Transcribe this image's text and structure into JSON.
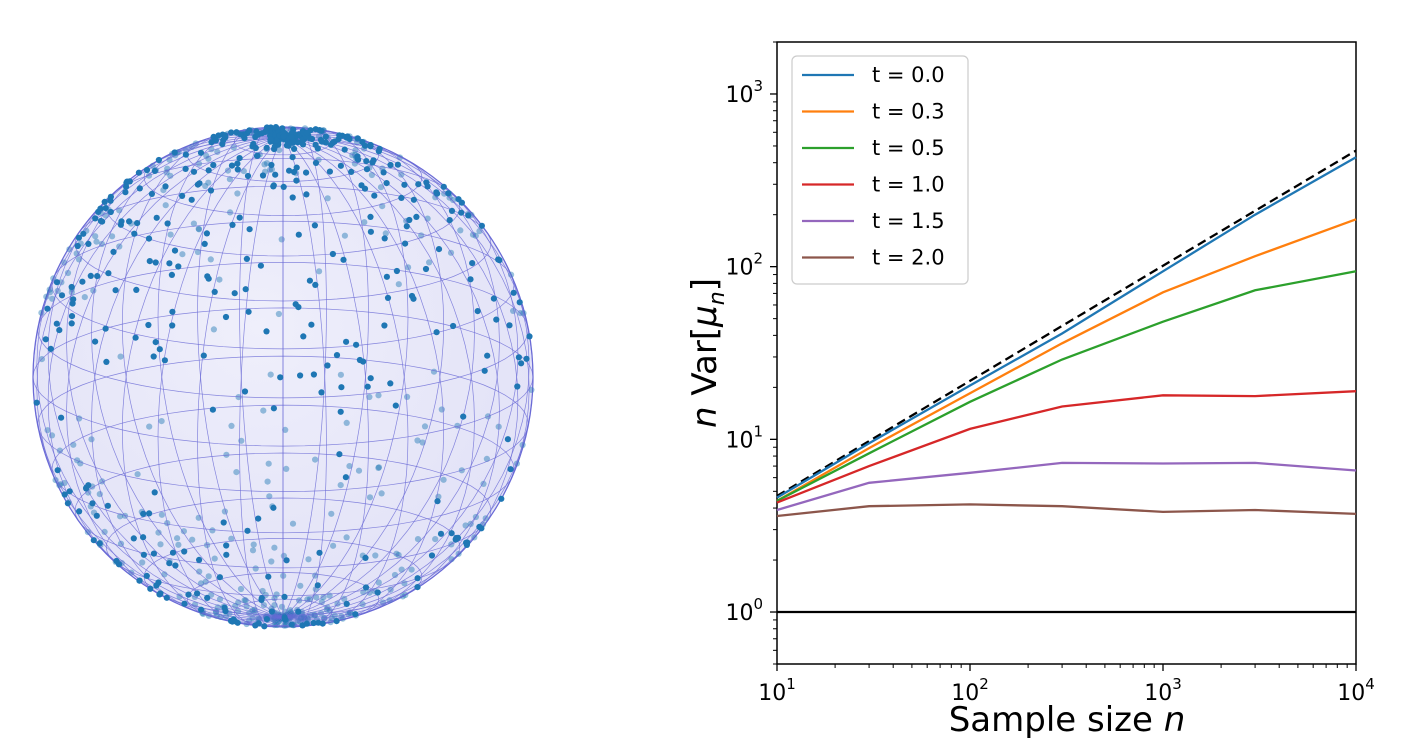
{
  "chart_data": [
    {
      "type": "scatter",
      "title": "",
      "description_id": "sphere-points",
      "points_color": "#1f77b4",
      "sphere_color": "#6a6ad6",
      "sphere_fill": "#e2e2f7"
    },
    {
      "type": "line",
      "title": "",
      "xlabel_prefix": "Sample size ",
      "xlabel_var": "n",
      "ylabel_var": "n",
      "ylabel_text": " Var[",
      "ylabel_mu": "μ",
      "ylabel_sub": "n",
      "ylabel_close": "]",
      "xscale": "log",
      "yscale": "log",
      "xlim": [
        10,
        10000
      ],
      "ylim": [
        0.5,
        2000
      ],
      "x_ticks": [
        {
          "base": "10",
          "exp": "1",
          "value": 10
        },
        {
          "base": "10",
          "exp": "2",
          "value": 100
        },
        {
          "base": "10",
          "exp": "3",
          "value": 1000
        },
        {
          "base": "10",
          "exp": "4",
          "value": 10000
        }
      ],
      "y_ticks": [
        {
          "base": "10",
          "exp": "0",
          "value": 1
        },
        {
          "base": "10",
          "exp": "1",
          "value": 10
        },
        {
          "base": "10",
          "exp": "2",
          "value": 100
        },
        {
          "base": "10",
          "exp": "3",
          "value": 1000
        }
      ],
      "x": [
        10,
        30,
        100,
        300,
        1000,
        3000,
        10000
      ],
      "legend_position": "top-left",
      "series": [
        {
          "name": "t = 0.0",
          "color": "#1f77b4",
          "values": [
            4.6,
            9.5,
            20.5,
            41,
            94,
            200,
            430
          ]
        },
        {
          "name": "t = 0.3",
          "color": "#ff7f0e",
          "values": [
            4.4,
            8.9,
            18.5,
            36,
            71,
            115,
            188
          ]
        },
        {
          "name": "t = 0.5",
          "color": "#2ca02c",
          "values": [
            4.4,
            8.3,
            16.5,
            29,
            48,
            73,
            94
          ]
        },
        {
          "name": "t = 1.0",
          "color": "#d62728",
          "values": [
            4.3,
            7.0,
            11.5,
            15.5,
            18,
            17.8,
            19
          ]
        },
        {
          "name": "t = 1.5",
          "color": "#9467bd",
          "values": [
            3.9,
            5.6,
            6.4,
            7.3,
            7.25,
            7.3,
            6.6
          ]
        },
        {
          "name": "t = 2.0",
          "color": "#8c564b",
          "values": [
            3.6,
            4.1,
            4.2,
            4.1,
            3.8,
            3.9,
            3.7
          ]
        }
      ],
      "reference_lines": [
        {
          "name": "linear-reference",
          "style": "dashed",
          "color": "#000000",
          "x": [
            10,
            10000
          ],
          "values": [
            4.7,
            470
          ]
        },
        {
          "name": "unit-reference",
          "style": "solid",
          "color": "#000000",
          "x": [
            10,
            10000
          ],
          "values": [
            1,
            1
          ]
        }
      ]
    }
  ]
}
